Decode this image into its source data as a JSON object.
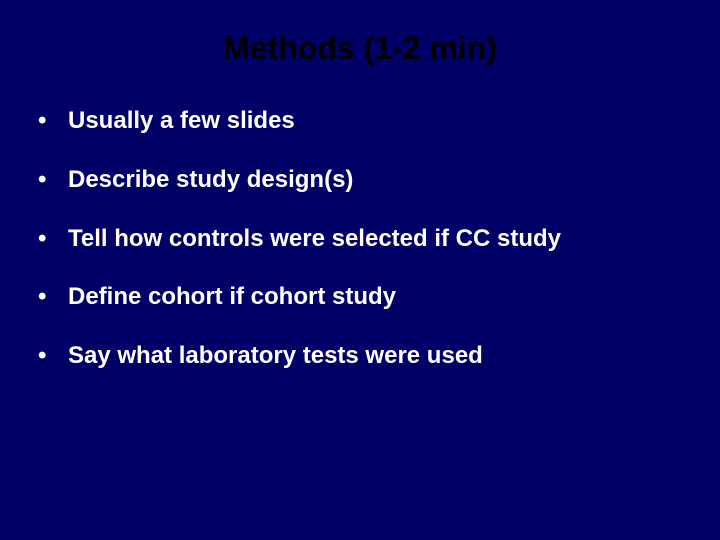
{
  "slide": {
    "title": "Methods (1-2 min)",
    "title_color": "#000000",
    "title_fontsize": 32,
    "title_fontweight": "bold",
    "background_color": "#000066",
    "bullet_color": "#ffffff",
    "bullet_fontsize": 24,
    "bullet_fontweight": "bold",
    "bullets": [
      "Usually a few slides",
      "Describe study design(s)",
      "Tell how controls were selected if CC study",
      "Define cohort if cohort study",
      "Say what laboratory tests were used"
    ]
  }
}
